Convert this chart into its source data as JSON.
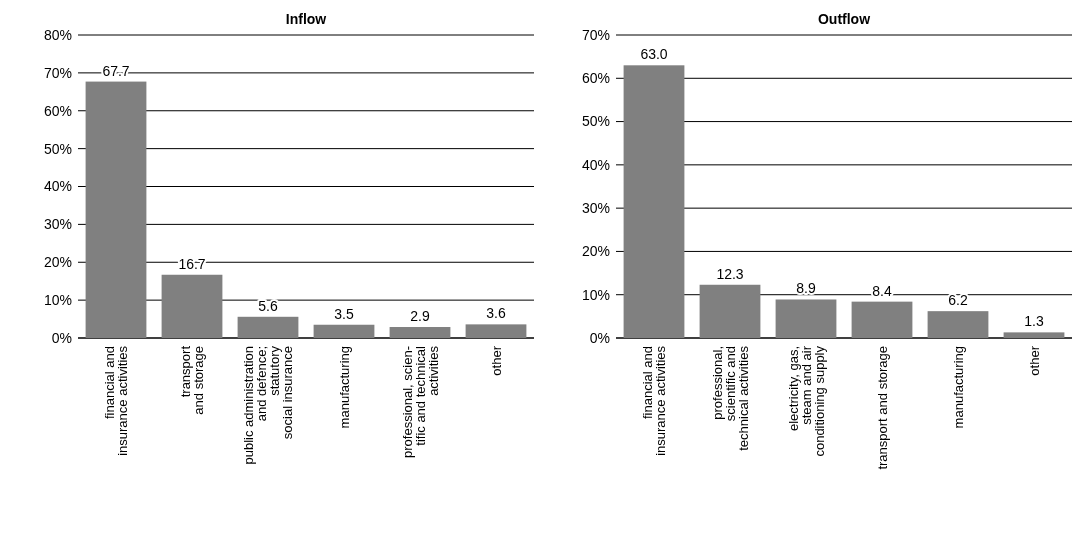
{
  "chart_data": [
    {
      "type": "bar",
      "title": "Inflow",
      "categories": [
        "financial and\ninsurance activities",
        "transport\nand storage",
        "public administration\nand defence;\nstatutory\nsocial insurance",
        "manufacturing",
        "professional, scien-\ntific and technical\nactivities",
        "other"
      ],
      "values": [
        67.7,
        16.7,
        5.6,
        3.5,
        2.9,
        3.6
      ],
      "color": "#808080",
      "data_labels": true,
      "grid": "y",
      "ylim": [
        0,
        80
      ],
      "yticks": [
        {
          "value": 0,
          "label": "0%"
        },
        {
          "value": 10,
          "label": "10%"
        },
        {
          "value": 20,
          "label": "20%"
        },
        {
          "value": 30,
          "label": "30%"
        },
        {
          "value": 40,
          "label": "40%"
        },
        {
          "value": 50,
          "label": "50%"
        },
        {
          "value": 60,
          "label": "60%"
        },
        {
          "value": 70,
          "label": "70%"
        },
        {
          "value": 80,
          "label": "80%"
        }
      ]
    },
    {
      "type": "bar",
      "title": "Outflow",
      "categories": [
        "financial and\ninsurance activities",
        "professional,\nscientific and\ntechnical activities",
        "electricity, gas,\nsteam and air\nconditioning supply",
        "transport and storage",
        "manufacturing",
        "other"
      ],
      "values": [
        63.0,
        12.3,
        8.9,
        8.4,
        6.2,
        1.3
      ],
      "value_labels": [
        "63.0",
        "12.3",
        "8.9",
        "8.4",
        "6.2",
        "1.3"
      ],
      "color": "#808080",
      "grid": "y",
      "ylim": [
        0,
        70
      ],
      "yticks": [
        {
          "value": 0,
          "label": "0%"
        },
        {
          "value": 10,
          "label": "10%"
        },
        {
          "value": 20,
          "label": "20%"
        },
        {
          "value": 30,
          "label": "30%"
        },
        {
          "value": 40,
          "label": "40%"
        },
        {
          "value": 50,
          "label": "50%"
        },
        {
          "value": 60,
          "label": "60%"
        },
        {
          "value": 70,
          "label": "70%"
        }
      ]
    }
  ]
}
